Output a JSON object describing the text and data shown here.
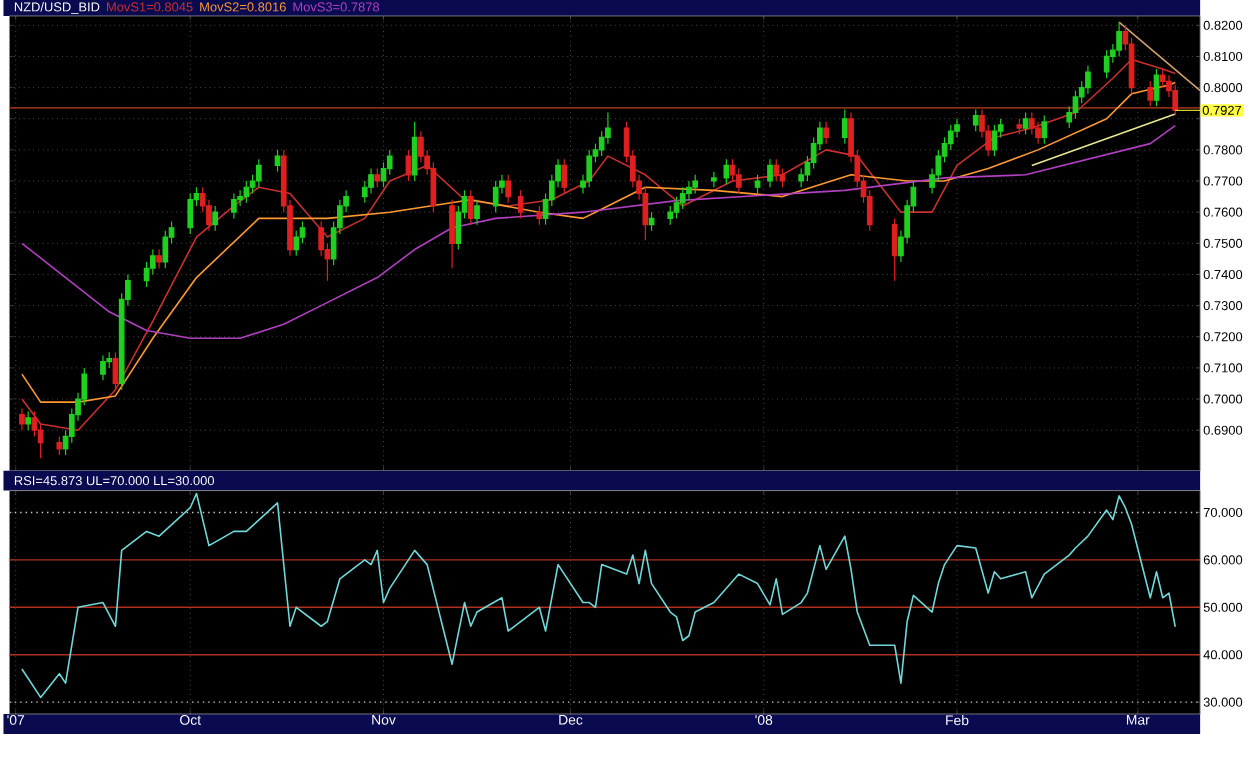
{
  "chart_data": [
    {
      "type": "candlestick",
      "title": "NZD/USD_BID",
      "legend": "top left",
      "grid": true,
      "tick_labels": "y",
      "x": [
        "2007-09-04",
        "2007-09-05",
        "2007-09-06",
        "2007-09-07",
        "2007-09-10",
        "2007-09-11",
        "2007-09-12",
        "2007-09-13",
        "2007-09-14",
        "2007-09-17",
        "2007-09-18",
        "2007-09-19",
        "2007-09-20",
        "2007-09-21",
        "2007-09-24",
        "2007-09-25",
        "2007-09-26",
        "2007-09-27",
        "2007-09-28",
        "2007-10-01",
        "2007-10-02",
        "2007-10-03",
        "2007-10-04",
        "2007-10-05",
        "2007-10-08",
        "2007-10-09",
        "2007-10-10",
        "2007-10-11",
        "2007-10-12",
        "2007-10-15",
        "2007-10-16",
        "2007-10-17",
        "2007-10-18",
        "2007-10-19",
        "2007-10-22",
        "2007-10-23",
        "2007-10-24",
        "2007-10-25",
        "2007-10-26",
        "2007-10-29",
        "2007-10-30",
        "2007-10-31",
        "2007-11-01",
        "2007-11-02",
        "2007-11-05",
        "2007-11-06",
        "2007-11-07",
        "2007-11-08",
        "2007-11-09",
        "2007-11-12",
        "2007-11-13",
        "2007-11-14",
        "2007-11-15",
        "2007-11-16",
        "2007-11-19",
        "2007-11-20",
        "2007-11-21",
        "2007-11-23",
        "2007-11-26",
        "2007-11-27",
        "2007-11-28",
        "2007-11-29",
        "2007-11-30",
        "2007-12-03",
        "2007-12-04",
        "2007-12-05",
        "2007-12-06",
        "2007-12-07",
        "2007-12-10",
        "2007-12-11",
        "2007-12-12",
        "2007-12-13",
        "2007-12-14",
        "2007-12-17",
        "2007-12-18",
        "2007-12-19",
        "2007-12-20",
        "2007-12-21",
        "2007-12-24",
        "2007-12-26",
        "2007-12-27",
        "2007-12-28",
        "2007-12-31",
        "2008-01-02",
        "2008-01-03",
        "2008-01-04",
        "2008-01-07",
        "2008-01-08",
        "2008-01-09",
        "2008-01-10",
        "2008-01-11",
        "2008-01-14",
        "2008-01-15",
        "2008-01-16",
        "2008-01-17",
        "2008-01-18",
        "2008-01-22",
        "2008-01-23",
        "2008-01-24",
        "2008-01-25",
        "2008-01-28",
        "2008-01-29",
        "2008-01-30",
        "2008-01-31",
        "2008-02-01",
        "2008-02-04",
        "2008-02-05",
        "2008-02-06",
        "2008-02-07",
        "2008-02-08",
        "2008-02-11",
        "2008-02-12",
        "2008-02-13",
        "2008-02-14",
        "2008-02-15",
        "2008-02-19",
        "2008-02-20",
        "2008-02-21",
        "2008-02-22",
        "2008-02-25",
        "2008-02-26",
        "2008-02-27",
        "2008-02-28",
        "2008-02-29",
        "2008-03-03",
        "2008-03-04",
        "2008-03-05",
        "2008-03-06",
        "2008-03-07"
      ],
      "ohlc": [
        [
          0.695,
          0.697,
          0.69,
          0.692
        ],
        [
          0.692,
          0.696,
          0.69,
          0.694
        ],
        [
          0.694,
          0.696,
          0.688,
          0.69
        ],
        [
          0.69,
          0.692,
          0.681,
          0.686
        ],
        [
          0.686,
          0.688,
          0.682,
          0.684
        ],
        [
          0.684,
          0.69,
          0.682,
          0.688
        ],
        [
          0.688,
          0.697,
          0.686,
          0.695
        ],
        [
          0.695,
          0.702,
          0.693,
          0.7
        ],
        [
          0.7,
          0.71,
          0.698,
          0.708
        ],
        [
          0.708,
          0.714,
          0.706,
          0.712
        ],
        [
          0.712,
          0.715,
          0.71,
          0.713
        ],
        [
          0.713,
          0.715,
          0.703,
          0.705
        ],
        [
          0.705,
          0.734,
          0.703,
          0.732
        ],
        [
          0.732,
          0.74,
          0.73,
          0.738
        ],
        [
          0.738,
          0.744,
          0.736,
          0.742
        ],
        [
          0.742,
          0.748,
          0.74,
          0.746
        ],
        [
          0.746,
          0.748,
          0.742,
          0.744
        ],
        [
          0.744,
          0.754,
          0.742,
          0.752
        ],
        [
          0.752,
          0.757,
          0.75,
          0.755
        ],
        [
          0.755,
          0.766,
          0.753,
          0.764
        ],
        [
          0.764,
          0.768,
          0.762,
          0.766
        ],
        [
          0.766,
          0.768,
          0.76,
          0.762
        ],
        [
          0.762,
          0.764,
          0.754,
          0.756
        ],
        [
          0.756,
          0.762,
          0.754,
          0.76
        ],
        [
          0.76,
          0.766,
          0.758,
          0.764
        ],
        [
          0.764,
          0.767,
          0.762,
          0.765
        ],
        [
          0.765,
          0.77,
          0.763,
          0.768
        ],
        [
          0.768,
          0.772,
          0.766,
          0.77
        ],
        [
          0.77,
          0.777,
          0.768,
          0.775
        ],
        [
          0.775,
          0.78,
          0.773,
          0.778
        ],
        [
          0.778,
          0.78,
          0.76,
          0.762
        ],
        [
          0.762,
          0.764,
          0.746,
          0.748
        ],
        [
          0.748,
          0.754,
          0.746,
          0.752
        ],
        [
          0.752,
          0.757,
          0.75,
          0.755
        ],
        [
          0.755,
          0.757,
          0.746,
          0.748
        ],
        [
          0.748,
          0.75,
          0.738,
          0.745
        ],
        [
          0.745,
          0.757,
          0.743,
          0.755
        ],
        [
          0.755,
          0.764,
          0.753,
          0.762
        ],
        [
          0.762,
          0.767,
          0.76,
          0.765
        ],
        [
          0.765,
          0.77,
          0.763,
          0.768
        ],
        [
          0.768,
          0.774,
          0.766,
          0.772
        ],
        [
          0.772,
          0.774,
          0.768,
          0.77
        ],
        [
          0.77,
          0.776,
          0.768,
          0.774
        ],
        [
          0.774,
          0.78,
          0.772,
          0.778
        ],
        [
          0.778,
          0.78,
          0.77,
          0.772
        ],
        [
          0.772,
          0.789,
          0.77,
          0.784
        ],
        [
          0.784,
          0.786,
          0.776,
          0.778
        ],
        [
          0.778,
          0.78,
          0.772,
          0.774
        ],
        [
          0.774,
          0.776,
          0.76,
          0.762
        ],
        [
          0.762,
          0.764,
          0.742,
          0.75
        ],
        [
          0.75,
          0.762,
          0.748,
          0.76
        ],
        [
          0.76,
          0.767,
          0.758,
          0.765
        ],
        [
          0.765,
          0.767,
          0.756,
          0.758
        ],
        [
          0.758,
          0.764,
          0.756,
          0.762
        ],
        [
          0.762,
          0.77,
          0.76,
          0.768
        ],
        [
          0.768,
          0.772,
          0.766,
          0.77
        ],
        [
          0.77,
          0.772,
          0.763,
          0.765
        ],
        [
          0.765,
          0.767,
          0.758,
          0.76
        ],
        [
          0.76,
          0.762,
          0.756,
          0.758
        ],
        [
          0.758,
          0.766,
          0.756,
          0.764
        ],
        [
          0.764,
          0.772,
          0.762,
          0.77
        ],
        [
          0.77,
          0.777,
          0.768,
          0.775
        ],
        [
          0.775,
          0.777,
          0.766,
          0.768
        ],
        [
          0.768,
          0.772,
          0.766,
          0.77
        ],
        [
          0.77,
          0.78,
          0.768,
          0.778
        ],
        [
          0.778,
          0.782,
          0.776,
          0.78
        ],
        [
          0.78,
          0.786,
          0.778,
          0.784
        ],
        [
          0.784,
          0.792,
          0.782,
          0.787
        ],
        [
          0.787,
          0.789,
          0.776,
          0.778
        ],
        [
          0.778,
          0.78,
          0.768,
          0.77
        ],
        [
          0.77,
          0.772,
          0.764,
          0.766
        ],
        [
          0.766,
          0.768,
          0.751,
          0.756
        ],
        [
          0.756,
          0.76,
          0.754,
          0.758
        ],
        [
          0.758,
          0.762,
          0.756,
          0.76
        ],
        [
          0.76,
          0.765,
          0.758,
          0.763
        ],
        [
          0.763,
          0.768,
          0.761,
          0.766
        ],
        [
          0.766,
          0.77,
          0.764,
          0.768
        ],
        [
          0.768,
          0.772,
          0.766,
          0.77
        ],
        [
          0.77,
          0.773,
          0.768,
          0.771
        ],
        [
          0.771,
          0.777,
          0.769,
          0.775
        ],
        [
          0.775,
          0.777,
          0.77,
          0.772
        ],
        [
          0.772,
          0.774,
          0.766,
          0.768
        ],
        [
          0.768,
          0.772,
          0.766,
          0.77
        ],
        [
          0.77,
          0.777,
          0.768,
          0.775
        ],
        [
          0.775,
          0.777,
          0.77,
          0.772
        ],
        [
          0.772,
          0.774,
          0.768,
          0.77
        ],
        [
          0.77,
          0.774,
          0.768,
          0.772
        ],
        [
          0.772,
          0.778,
          0.77,
          0.776
        ],
        [
          0.776,
          0.784,
          0.774,
          0.782
        ],
        [
          0.782,
          0.789,
          0.78,
          0.787
        ],
        [
          0.787,
          0.789,
          0.782,
          0.784
        ],
        [
          0.784,
          0.793,
          0.782,
          0.79
        ],
        [
          0.79,
          0.792,
          0.776,
          0.778
        ],
        [
          0.778,
          0.78,
          0.768,
          0.77
        ],
        [
          0.77,
          0.772,
          0.763,
          0.765
        ],
        [
          0.765,
          0.767,
          0.754,
          0.756
        ],
        [
          0.756,
          0.758,
          0.738,
          0.746
        ],
        [
          0.746,
          0.754,
          0.744,
          0.752
        ],
        [
          0.752,
          0.764,
          0.75,
          0.762
        ],
        [
          0.762,
          0.77,
          0.76,
          0.768
        ],
        [
          0.768,
          0.774,
          0.766,
          0.772
        ],
        [
          0.772,
          0.78,
          0.77,
          0.778
        ],
        [
          0.778,
          0.784,
          0.776,
          0.782
        ],
        [
          0.782,
          0.788,
          0.78,
          0.786
        ],
        [
          0.786,
          0.79,
          0.784,
          0.788
        ],
        [
          0.788,
          0.793,
          0.786,
          0.791
        ],
        [
          0.791,
          0.793,
          0.784,
          0.786
        ],
        [
          0.786,
          0.788,
          0.778,
          0.78
        ],
        [
          0.78,
          0.788,
          0.778,
          0.786
        ],
        [
          0.786,
          0.79,
          0.784,
          0.788
        ],
        [
          0.788,
          0.79,
          0.785,
          0.787
        ],
        [
          0.787,
          0.792,
          0.785,
          0.79
        ],
        [
          0.79,
          0.792,
          0.785,
          0.787
        ],
        [
          0.787,
          0.789,
          0.782,
          0.784
        ],
        [
          0.784,
          0.791,
          0.782,
          0.789
        ],
        [
          0.789,
          0.794,
          0.787,
          0.792
        ],
        [
          0.792,
          0.799,
          0.79,
          0.797
        ],
        [
          0.797,
          0.802,
          0.795,
          0.8
        ],
        [
          0.8,
          0.807,
          0.798,
          0.805
        ],
        [
          0.805,
          0.812,
          0.803,
          0.81
        ],
        [
          0.81,
          0.814,
          0.808,
          0.812
        ],
        [
          0.812,
          0.821,
          0.81,
          0.818
        ],
        [
          0.818,
          0.82,
          0.812,
          0.814
        ],
        [
          0.814,
          0.816,
          0.798,
          0.8
        ],
        [
          0.8,
          0.802,
          0.794,
          0.796
        ],
        [
          0.796,
          0.806,
          0.794,
          0.804
        ],
        [
          0.804,
          0.806,
          0.8,
          0.802
        ],
        [
          0.802,
          0.804,
          0.797,
          0.799
        ],
        [
          0.799,
          0.801,
          0.791,
          0.7927
        ]
      ],
      "series": [
        {
          "name": "MovS1=0.8045",
          "type": "line",
          "color": "#c83030",
          "x": [
            "2007-09-04",
            "2007-09-07",
            "2007-09-13",
            "2007-09-19",
            "2007-09-25",
            "2007-10-02",
            "2007-10-08",
            "2007-10-12",
            "2007-10-17",
            "2007-10-23",
            "2007-10-29",
            "2007-11-02",
            "2007-11-08",
            "2007-11-14",
            "2007-11-21",
            "2007-11-28",
            "2007-12-04",
            "2007-12-07",
            "2007-12-13",
            "2007-12-19",
            "2007-12-27",
            "2008-01-04",
            "2008-01-11",
            "2008-01-16",
            "2008-01-23",
            "2008-01-28",
            "2008-02-01",
            "2008-02-07",
            "2008-02-13",
            "2008-02-20",
            "2008-02-26",
            "2008-02-29",
            "2008-03-05",
            "2008-03-07"
          ],
          "values": [
            0.7,
            0.692,
            0.69,
            0.703,
            0.725,
            0.752,
            0.762,
            0.768,
            0.766,
            0.752,
            0.758,
            0.77,
            0.775,
            0.764,
            0.762,
            0.764,
            0.77,
            0.778,
            0.772,
            0.762,
            0.77,
            0.772,
            0.78,
            0.778,
            0.76,
            0.76,
            0.775,
            0.784,
            0.787,
            0.792,
            0.803,
            0.809,
            0.806,
            0.8045
          ]
        },
        {
          "name": "MovS2=0.8016",
          "type": "line",
          "color": "#ff9933",
          "x": [
            "2007-09-04",
            "2007-09-07",
            "2007-09-13",
            "2007-09-19",
            "2007-09-25",
            "2007-10-02",
            "2007-10-12",
            "2007-10-23",
            "2007-11-02",
            "2007-11-15",
            "2007-11-26",
            "2007-12-03",
            "2007-12-05",
            "2007-12-13",
            "2007-12-24",
            "2008-01-04",
            "2008-01-15",
            "2008-01-24",
            "2008-01-30",
            "2008-02-06",
            "2008-02-14",
            "2008-02-25",
            "2008-02-29",
            "2008-03-06",
            "2008-03-07"
          ],
          "values": [
            0.708,
            0.699,
            0.699,
            0.701,
            0.7195,
            0.739,
            0.758,
            0.758,
            0.76,
            0.764,
            0.76,
            0.758,
            0.76,
            0.768,
            0.767,
            0.765,
            0.772,
            0.77,
            0.77,
            0.774,
            0.78,
            0.79,
            0.798,
            0.8008,
            0.8016
          ]
        },
        {
          "name": "MovS3=0.7878",
          "type": "line",
          "color": "#b040c0",
          "x": [
            "2007-09-04",
            "2007-09-11",
            "2007-09-18",
            "2007-09-24",
            "2007-10-01",
            "2007-10-09",
            "2007-10-16",
            "2007-10-22",
            "2007-10-31",
            "2007-11-06",
            "2007-11-12",
            "2007-11-19",
            "2007-12-03",
            "2007-12-18",
            "2008-01-14",
            "2008-01-30",
            "2008-02-12",
            "2008-02-22",
            "2008-03-03",
            "2008-03-07"
          ],
          "values": [
            0.75,
            0.739,
            0.728,
            0.722,
            0.7195,
            0.7195,
            0.724,
            0.73,
            0.739,
            0.748,
            0.755,
            0.758,
            0.76,
            0.7637,
            0.767,
            0.771,
            0.772,
            0.777,
            0.782,
            0.7878
          ]
        },
        {
          "type": "line",
          "color": "#e8e890",
          "x": [
            "2008-02-13",
            "2008-03-07"
          ],
          "values": [
            0.775,
            0.7915
          ]
        },
        {
          "type": "line",
          "color": "#d0a070",
          "x": [
            "2008-02-27",
            "2008-03-11"
          ],
          "values": [
            0.821,
            0.799
          ]
        }
      ],
      "ref_lines": [
        {
          "axis": "y",
          "value": 0.7935,
          "color": "#c04020",
          "line_style": "solid"
        }
      ],
      "annotations": [
        {
          "text": "0.7927",
          "x": "2008-03-07",
          "y": 0.7927
        }
      ],
      "xlim": [
        "2007-09-02",
        "2008-03-11"
      ],
      "ylim": [
        0.677,
        0.823
      ],
      "xticks": [
        {
          "value": "2007-09-03",
          "label": null
        },
        {
          "value": "2007-10-01",
          "label": null
        },
        {
          "value": "2007-11-01",
          "label": null
        },
        {
          "value": "2007-12-01",
          "label": null
        },
        {
          "value": "2008-01-01",
          "label": null
        },
        {
          "value": "2008-02-01",
          "label": null
        },
        {
          "value": "2008-03-01",
          "label": null
        }
      ],
      "yticks": [
        {
          "value": 0.69,
          "label": "0.6900"
        },
        {
          "value": 0.7,
          "label": "0.7000"
        },
        {
          "value": 0.71,
          "label": "0.7100"
        },
        {
          "value": 0.72,
          "label": "0.7200"
        },
        {
          "value": 0.73,
          "label": "0.7300"
        },
        {
          "value": 0.74,
          "label": "0.7400"
        },
        {
          "value": 0.75,
          "label": "0.7500"
        },
        {
          "value": 0.76,
          "label": "0.7600"
        },
        {
          "value": 0.77,
          "label": "0.7700"
        },
        {
          "value": 0.78,
          "label": "0.7800"
        },
        {
          "value": 0.79,
          "label": null
        },
        {
          "value": 0.8,
          "label": "0.8000"
        },
        {
          "value": 0.81,
          "label": "0.8100"
        },
        {
          "value": 0.82,
          "label": "0.8200"
        }
      ]
    },
    {
      "type": "line",
      "title": "RSI=45.873 UL=70.000 LL=30.000",
      "grid": "x",
      "series": [
        {
          "color": "#70d8d8",
          "x": [
            "2007-09-04",
            "2007-09-07",
            "2007-09-10",
            "2007-09-11",
            "2007-09-13",
            "2007-09-17",
            "2007-09-19",
            "2007-09-20",
            "2007-09-24",
            "2007-09-26",
            "2007-10-01",
            "2007-10-02",
            "2007-10-04",
            "2007-10-08",
            "2007-10-10",
            "2007-10-15",
            "2007-10-17",
            "2007-10-18",
            "2007-10-22",
            "2007-10-23",
            "2007-10-25",
            "2007-10-29",
            "2007-10-30",
            "2007-10-31",
            "2007-11-01",
            "2007-11-02",
            "2007-11-06",
            "2007-11-08",
            "2007-11-12",
            "2007-11-14",
            "2007-11-15",
            "2007-11-16",
            "2007-11-20",
            "2007-11-21",
            "2007-11-26",
            "2007-11-27",
            "2007-11-29",
            "2007-12-03",
            "2007-12-04",
            "2007-12-05",
            "2007-12-06",
            "2007-12-10",
            "2007-12-11",
            "2007-12-12",
            "2007-12-13",
            "2007-12-14",
            "2007-12-17",
            "2007-12-18",
            "2007-12-19",
            "2007-12-20",
            "2007-12-21",
            "2007-12-24",
            "2007-12-28",
            "2007-12-31",
            "2008-01-02",
            "2008-01-03",
            "2008-01-04",
            "2008-01-07",
            "2008-01-08",
            "2008-01-10",
            "2008-01-11",
            "2008-01-14",
            "2008-01-15",
            "2008-01-16",
            "2008-01-18",
            "2008-01-22",
            "2008-01-23",
            "2008-01-24",
            "2008-01-25",
            "2008-01-28",
            "2008-01-29",
            "2008-01-30",
            "2008-02-01",
            "2008-02-04",
            "2008-02-06",
            "2008-02-07",
            "2008-02-08",
            "2008-02-12",
            "2008-02-13",
            "2008-02-15",
            "2008-02-19",
            "2008-02-20",
            "2008-02-22",
            "2008-02-25",
            "2008-02-26",
            "2008-02-27",
            "2008-02-28",
            "2008-02-29",
            "2008-03-03",
            "2008-03-04",
            "2008-03-05",
            "2008-03-06",
            "2008-03-07"
          ],
          "values": [
            37,
            31,
            36,
            34,
            50,
            51,
            46,
            62,
            66,
            65,
            71,
            74,
            63,
            66,
            66,
            72,
            46,
            50,
            46,
            47,
            56,
            60,
            59,
            62,
            51,
            54,
            62,
            59,
            38,
            51,
            46,
            49,
            52,
            45,
            50,
            45,
            59,
            51,
            51,
            50,
            59,
            57,
            61,
            55,
            62,
            55,
            49,
            48,
            43,
            44,
            49,
            51,
            57,
            55,
            50.5,
            56,
            48.5,
            51,
            53,
            63,
            58,
            65,
            58,
            49,
            42,
            42,
            34,
            47,
            52.5,
            49,
            55,
            59,
            63,
            62.5,
            53,
            57.5,
            56,
            57.5,
            52,
            57,
            61,
            62.5,
            65,
            70.5,
            68.5,
            73.5,
            71,
            67.5,
            52,
            57.5,
            52,
            53,
            45.9
          ]
        }
      ],
      "ref_lines": [
        {
          "axis": "y",
          "value": 70,
          "color": "#d0d0d0",
          "line_style": "dotted"
        },
        {
          "axis": "y",
          "value": 60,
          "color": "#b03020",
          "line_style": "solid"
        },
        {
          "axis": "y",
          "value": 50,
          "color": "#b03020",
          "line_style": "solid"
        },
        {
          "axis": "y",
          "value": 40,
          "color": "#b03020",
          "line_style": "solid"
        },
        {
          "axis": "y",
          "value": 30,
          "color": "#d0d0d0",
          "line_style": "dotted"
        }
      ],
      "xlim": [
        "2007-09-02",
        "2008-03-11"
      ],
      "ylim": [
        27.5,
        74.6
      ],
      "xticks": [
        {
          "value": "2007-09-03",
          "label": "'07"
        },
        {
          "value": "2007-10-01",
          "label": "Oct"
        },
        {
          "value": "2007-11-01",
          "label": "Nov"
        },
        {
          "value": "2007-12-01",
          "label": "Dec"
        },
        {
          "value": "2008-01-01",
          "label": "'08"
        },
        {
          "value": "2008-02-01",
          "label": "Feb"
        },
        {
          "value": "2008-03-01",
          "label": "Mar"
        }
      ],
      "yticks": [
        {
          "value": 30,
          "label": "30.000"
        },
        {
          "value": 40,
          "label": "40.000"
        },
        {
          "value": 50,
          "label": "50.000"
        },
        {
          "value": 60,
          "label": "60.000"
        },
        {
          "value": 70,
          "label": "70.000"
        }
      ]
    }
  ]
}
